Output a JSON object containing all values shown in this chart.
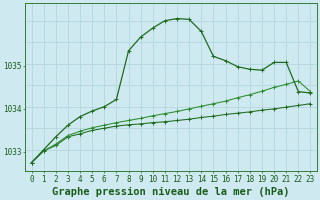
{
  "title": "Graphe pression niveau de la mer (hPa)",
  "background_color": "#ceeaf0",
  "grid_color": "#aed4dc",
  "line_color_dark": "#1e6b1e",
  "line_color_mid": "#2d8b2d",
  "text_color": "#1a5c1a",
  "hours": [
    0,
    1,
    2,
    3,
    4,
    5,
    6,
    7,
    8,
    9,
    10,
    11,
    12,
    13,
    14,
    15,
    16,
    17,
    18,
    19,
    20,
    21,
    22,
    23
  ],
  "s1": [
    1032.75,
    1033.02,
    1033.15,
    1033.35,
    1033.42,
    1033.5,
    1033.55,
    1033.6,
    1033.63,
    1033.65,
    1033.68,
    1033.7,
    1033.73,
    1033.76,
    1033.8,
    1033.83,
    1033.87,
    1033.9,
    1033.93,
    1033.97,
    1034.0,
    1034.04,
    1034.08,
    1034.12
  ],
  "s2": [
    1032.75,
    1033.02,
    1033.18,
    1033.38,
    1033.48,
    1033.56,
    1033.62,
    1033.68,
    1033.73,
    1033.78,
    1033.84,
    1033.89,
    1033.94,
    1034.0,
    1034.06,
    1034.12,
    1034.18,
    1034.26,
    1034.33,
    1034.41,
    1034.5,
    1034.57,
    1034.65,
    1034.4
  ],
  "s3": [
    1032.75,
    1033.05,
    1033.35,
    1033.62,
    1033.82,
    1033.95,
    1034.05,
    1034.22,
    1035.35,
    1035.67,
    1035.88,
    1036.05,
    1036.1,
    1036.08,
    1035.8,
    1035.22,
    1035.12,
    1034.98,
    1034.92,
    1034.9,
    1035.08,
    1035.08,
    1034.4,
    1034.37
  ],
  "ylim_min": 1032.55,
  "ylim_max": 1036.45,
  "yticks": [
    1033,
    1034,
    1035
  ],
  "figw": 3.2,
  "figh": 2.0,
  "dpi": 100,
  "tick_fontsize": 5.5,
  "label_fontsize": 7.5
}
